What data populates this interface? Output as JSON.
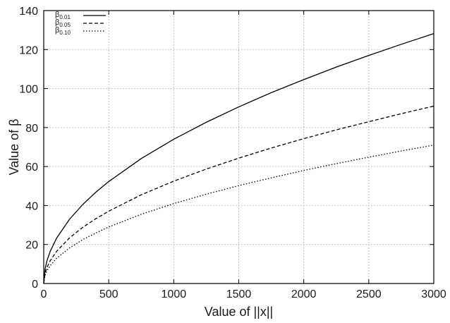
{
  "chart_data": {
    "type": "line",
    "title": "",
    "xlabel": "Value of ||x||",
    "ylabel": "Value of β",
    "xlim": [
      0,
      3000
    ],
    "ylim": [
      0,
      140
    ],
    "x_ticks": [
      0,
      500,
      1000,
      1500,
      2000,
      2500,
      3000
    ],
    "y_ticks": [
      0,
      20,
      40,
      60,
      80,
      100,
      120,
      140
    ],
    "grid": true,
    "legend_position": "top-left",
    "x": [
      0,
      10,
      25,
      50,
      100,
      200,
      300,
      400,
      500,
      750,
      1000,
      1250,
      1500,
      1750,
      2000,
      2250,
      2500,
      2750,
      3000
    ],
    "series": [
      {
        "name": "β",
        "name_sub": "0.01",
        "style": "solid",
        "values": [
          0,
          7.4,
          11.7,
          16.5,
          23.4,
          33.1,
          40.5,
          46.8,
          52.3,
          64.1,
          74.0,
          82.7,
          90.6,
          97.9,
          104.6,
          111.0,
          117.0,
          122.7,
          128.2
        ]
      },
      {
        "name": "β",
        "name_sub": "0.05",
        "style": "dashed",
        "values": [
          0,
          5.3,
          8.3,
          11.7,
          16.6,
          23.5,
          28.8,
          33.2,
          37.1,
          45.5,
          52.5,
          58.7,
          64.3,
          69.5,
          74.3,
          78.8,
          83.0,
          87.1,
          91.0
        ]
      },
      {
        "name": "β",
        "name_sub": "0.10",
        "style": "dotted",
        "values": [
          0,
          4.1,
          6.5,
          9.2,
          13.0,
          18.3,
          22.5,
          25.9,
          29.0,
          35.5,
          41.0,
          45.8,
          50.2,
          54.2,
          58.0,
          61.5,
          64.8,
          68.0,
          71.0
        ]
      }
    ]
  }
}
